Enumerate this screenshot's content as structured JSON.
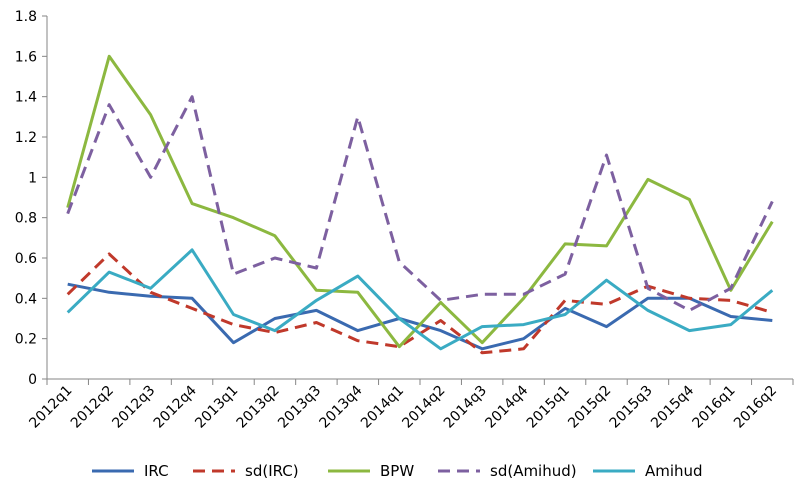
{
  "chart_data": {
    "type": "line",
    "title": "",
    "xlabel": "",
    "ylabel": "",
    "ylim": [
      0,
      1.8
    ],
    "yticks": [
      "0",
      "0.2",
      "0.4",
      "0.6",
      "0.8",
      "1",
      "1.2",
      "1.4",
      "1.6",
      "1.8"
    ],
    "grid": false,
    "legend_position": "bottom",
    "categories": [
      "2012q1",
      "2012q2",
      "2012q3",
      "2012q4",
      "2013q1",
      "2013q2",
      "2013q3",
      "2013q4",
      "2014q1",
      "2014q2",
      "2014q3",
      "2014q4",
      "2015q1",
      "2015q2",
      "2015q3",
      "2015q4",
      "2016q1",
      "2016q2"
    ],
    "series": [
      {
        "name": "IRC",
        "color": "#3a6ab0",
        "dash": "solid",
        "values": [
          0.47,
          0.43,
          0.41,
          0.4,
          0.18,
          0.3,
          0.34,
          0.24,
          0.3,
          0.24,
          0.15,
          0.2,
          0.35,
          0.26,
          0.4,
          0.4,
          0.31,
          0.29
        ]
      },
      {
        "name": "sd(IRC)",
        "color": "#c0392b",
        "dash": "dashed",
        "values": [
          0.42,
          0.62,
          0.43,
          0.35,
          0.27,
          0.23,
          0.28,
          0.19,
          0.16,
          0.29,
          0.13,
          0.15,
          0.39,
          0.37,
          0.46,
          0.4,
          0.39,
          0.33
        ]
      },
      {
        "name": "BPW",
        "color": "#8cb840",
        "dash": "solid",
        "values": [
          0.85,
          1.6,
          1.31,
          0.87,
          0.8,
          0.71,
          0.44,
          0.43,
          0.16,
          0.38,
          0.18,
          0.4,
          0.67,
          0.66,
          0.99,
          0.89,
          0.44,
          0.78
        ]
      },
      {
        "name": "sd(Amihud)",
        "color": "#7d60a0",
        "dash": "dashed",
        "values": [
          0.82,
          1.36,
          1.0,
          1.4,
          0.52,
          0.6,
          0.55,
          1.3,
          0.58,
          0.39,
          0.42,
          0.42,
          0.52,
          1.11,
          0.45,
          0.34,
          0.45,
          0.88
        ]
      },
      {
        "name": "Amihud",
        "color": "#3aabc3",
        "dash": "solid",
        "values": [
          0.33,
          0.53,
          0.45,
          0.64,
          0.32,
          0.24,
          0.39,
          0.51,
          0.3,
          0.15,
          0.26,
          0.27,
          0.32,
          0.49,
          0.34,
          0.24,
          0.27,
          0.44
        ]
      }
    ]
  }
}
